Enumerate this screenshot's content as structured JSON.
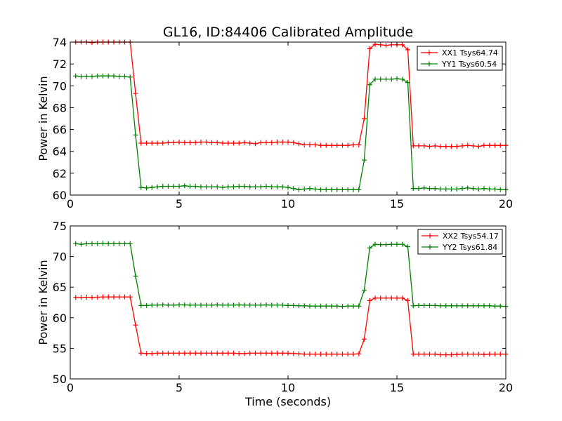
{
  "chart_data": [
    {
      "type": "line",
      "title": "GL16, ID:84406 Calibrated Amplitude",
      "xlabel": "",
      "ylabel": "Power in Kelvin",
      "xlim": [
        0,
        20
      ],
      "ylim": [
        60,
        74
      ],
      "xticks": [
        0,
        5,
        10,
        15,
        20
      ],
      "yticks": [
        60,
        62,
        64,
        66,
        68,
        70,
        72,
        74
      ],
      "legend_position": "top-right",
      "x": [
        0.25,
        0.5,
        0.75,
        1.0,
        1.25,
        1.5,
        1.75,
        2.0,
        2.25,
        2.5,
        2.75,
        3.0,
        3.25,
        3.5,
        3.75,
        4.0,
        4.25,
        4.5,
        4.75,
        5.0,
        5.25,
        5.5,
        5.75,
        6.0,
        6.25,
        6.5,
        6.75,
        7.0,
        7.25,
        7.5,
        7.75,
        8.0,
        8.25,
        8.5,
        8.75,
        9.0,
        9.25,
        9.5,
        9.75,
        10.0,
        10.25,
        10.5,
        10.75,
        11.0,
        11.25,
        11.5,
        11.75,
        12.0,
        12.25,
        12.5,
        12.75,
        13.0,
        13.25,
        13.5,
        13.75,
        14.0,
        14.25,
        14.5,
        14.75,
        15.0,
        15.25,
        15.5,
        15.75,
        16.0,
        16.25,
        16.5,
        16.75,
        17.0,
        17.25,
        17.5,
        17.75,
        18.0,
        18.25,
        18.5,
        18.75,
        19.0,
        19.25,
        19.5,
        19.75,
        20.0
      ],
      "series": [
        {
          "name": "XX1 Tsys64.74",
          "color": "#ff0000",
          "values": [
            74.0,
            74.0,
            74.0,
            73.95,
            74.0,
            74.0,
            74.0,
            74.0,
            74.0,
            74.0,
            74.0,
            69.3,
            64.75,
            64.75,
            64.75,
            64.75,
            64.75,
            64.8,
            64.8,
            64.85,
            64.8,
            64.8,
            64.8,
            64.85,
            64.85,
            64.8,
            64.8,
            64.75,
            64.75,
            64.75,
            64.75,
            64.8,
            64.75,
            64.7,
            64.8,
            64.8,
            64.8,
            64.85,
            64.85,
            64.85,
            64.8,
            64.7,
            64.6,
            64.6,
            64.6,
            64.55,
            64.55,
            64.55,
            64.55,
            64.55,
            64.55,
            64.6,
            64.6,
            67.0,
            73.4,
            73.8,
            73.75,
            73.7,
            73.75,
            73.75,
            73.75,
            73.3,
            64.5,
            64.5,
            64.5,
            64.45,
            64.5,
            64.45,
            64.45,
            64.45,
            64.45,
            64.5,
            64.55,
            64.5,
            64.45,
            64.55,
            64.55,
            64.55,
            64.55,
            64.55
          ]
        },
        {
          "name": "YY1 Tsys60.54",
          "color": "#008000",
          "values": [
            70.9,
            70.85,
            70.85,
            70.85,
            70.9,
            70.9,
            70.9,
            70.9,
            70.85,
            70.85,
            70.8,
            65.5,
            60.7,
            60.65,
            60.7,
            60.75,
            60.8,
            60.8,
            60.8,
            60.8,
            60.85,
            60.8,
            60.8,
            60.75,
            60.75,
            60.75,
            60.75,
            60.7,
            60.75,
            60.75,
            60.8,
            60.8,
            60.75,
            60.75,
            60.75,
            60.8,
            60.75,
            60.75,
            60.75,
            60.7,
            60.6,
            60.5,
            60.55,
            60.6,
            60.55,
            60.5,
            60.5,
            60.5,
            60.5,
            60.5,
            60.5,
            60.5,
            60.5,
            63.2,
            70.1,
            70.6,
            70.6,
            70.6,
            70.6,
            70.65,
            70.6,
            70.3,
            60.6,
            60.6,
            60.65,
            60.6,
            60.6,
            60.55,
            60.55,
            60.55,
            60.55,
            60.6,
            60.65,
            60.6,
            60.55,
            60.6,
            60.55,
            60.55,
            60.5,
            60.5
          ]
        }
      ]
    },
    {
      "type": "line",
      "title": "",
      "xlabel": "Time (seconds)",
      "ylabel": "Power in Kelvin",
      "xlim": [
        0,
        20
      ],
      "ylim": [
        50,
        75
      ],
      "xticks": [
        0,
        5,
        10,
        15,
        20
      ],
      "yticks": [
        50,
        55,
        60,
        65,
        70,
        75
      ],
      "legend_position": "top-right",
      "x": [
        0.25,
        0.5,
        0.75,
        1.0,
        1.25,
        1.5,
        1.75,
        2.0,
        2.25,
        2.5,
        2.75,
        3.0,
        3.25,
        3.5,
        3.75,
        4.0,
        4.25,
        4.5,
        4.75,
        5.0,
        5.25,
        5.5,
        5.75,
        6.0,
        6.25,
        6.5,
        6.75,
        7.0,
        7.25,
        7.5,
        7.75,
        8.0,
        8.25,
        8.5,
        8.75,
        9.0,
        9.25,
        9.5,
        9.75,
        10.0,
        10.25,
        10.5,
        10.75,
        11.0,
        11.25,
        11.5,
        11.75,
        12.0,
        12.25,
        12.5,
        12.75,
        13.0,
        13.25,
        13.5,
        13.75,
        14.0,
        14.25,
        14.5,
        14.75,
        15.0,
        15.25,
        15.5,
        15.75,
        16.0,
        16.25,
        16.5,
        16.75,
        17.0,
        17.25,
        17.5,
        17.75,
        18.0,
        18.25,
        18.5,
        18.75,
        19.0,
        19.25,
        19.5,
        19.75,
        20.0
      ],
      "series": [
        {
          "name": "XX2 Tsys54.17",
          "color": "#ff0000",
          "values": [
            63.3,
            63.3,
            63.35,
            63.3,
            63.35,
            63.4,
            63.4,
            63.4,
            63.4,
            63.4,
            63.4,
            58.8,
            54.2,
            54.15,
            54.15,
            54.2,
            54.2,
            54.2,
            54.2,
            54.2,
            54.2,
            54.2,
            54.2,
            54.2,
            54.2,
            54.2,
            54.2,
            54.2,
            54.2,
            54.2,
            54.15,
            54.15,
            54.2,
            54.2,
            54.2,
            54.2,
            54.2,
            54.2,
            54.2,
            54.2,
            54.15,
            54.1,
            54.05,
            54.05,
            54.05,
            54.05,
            54.05,
            54.05,
            54.05,
            54.05,
            54.05,
            54.05,
            54.1,
            56.5,
            62.8,
            63.2,
            63.2,
            63.2,
            63.2,
            63.2,
            63.2,
            62.8,
            54.05,
            54.05,
            54.05,
            54.05,
            54.05,
            53.95,
            53.95,
            53.95,
            54.0,
            54.05,
            54.05,
            54.05,
            54.05,
            54.0,
            54.05,
            54.05,
            54.05,
            54.05
          ]
        },
        {
          "name": "YY2 Tsys61.84",
          "color": "#008000",
          "values": [
            72.1,
            72.0,
            72.1,
            72.1,
            72.1,
            72.15,
            72.1,
            72.1,
            72.1,
            72.1,
            72.1,
            66.8,
            62.0,
            62.0,
            62.05,
            62.05,
            62.1,
            62.05,
            62.05,
            62.1,
            62.1,
            62.05,
            62.05,
            62.05,
            62.05,
            62.05,
            62.1,
            62.05,
            62.05,
            62.05,
            62.1,
            62.05,
            62.05,
            62.05,
            62.05,
            62.1,
            62.05,
            62.05,
            62.05,
            62.0,
            62.0,
            61.95,
            61.95,
            61.9,
            61.9,
            61.9,
            61.9,
            61.9,
            61.9,
            61.85,
            61.9,
            61.9,
            61.9,
            64.5,
            71.4,
            72.0,
            71.95,
            71.95,
            72.0,
            72.0,
            72.0,
            71.6,
            61.95,
            62.0,
            62.0,
            62.0,
            62.0,
            61.95,
            61.95,
            61.95,
            61.95,
            61.95,
            61.95,
            61.95,
            61.95,
            61.95,
            61.95,
            61.9,
            61.9,
            61.85
          ]
        }
      ]
    }
  ]
}
